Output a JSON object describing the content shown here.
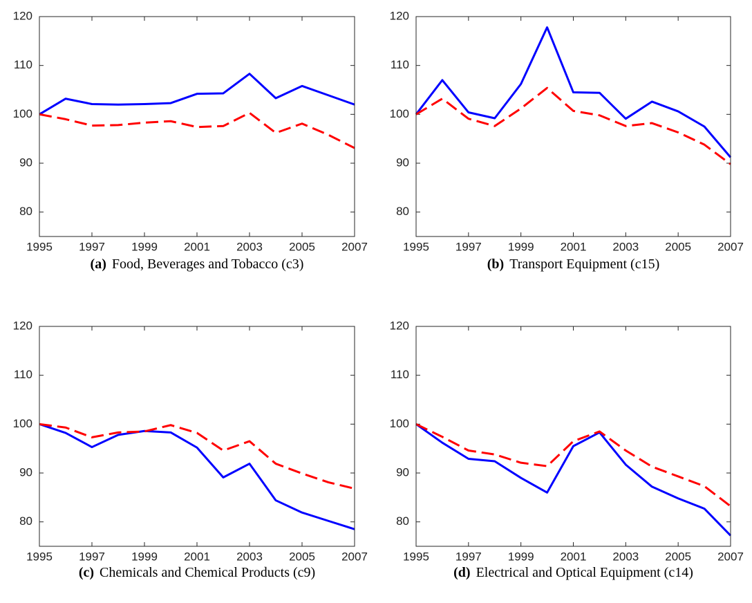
{
  "chart_data": [
    {
      "type": "line",
      "label": "(a)",
      "caption": "Food, Beverages and Tobacco (c3)",
      "x": [
        1995,
        1996,
        1997,
        1998,
        1999,
        2000,
        2001,
        2002,
        2003,
        2004,
        2005,
        2006,
        2007
      ],
      "xlim": [
        1995,
        2007
      ],
      "xticks": [
        1995,
        1997,
        1999,
        2001,
        2003,
        2005,
        2007
      ],
      "ylim": [
        75,
        120
      ],
      "yticks": [
        80,
        90,
        100,
        110,
        120
      ],
      "grid": false,
      "series": [
        {
          "color": "#0000ff",
          "style": "solid",
          "values": [
            100,
            103.2,
            102.1,
            102.0,
            102.1,
            102.3,
            104.2,
            104.3,
            108.3,
            103.3,
            105.8,
            103.9,
            102.0
          ]
        },
        {
          "color": "#ff0000",
          "style": "dashed",
          "values": [
            100,
            99.0,
            97.7,
            97.8,
            98.3,
            98.6,
            97.4,
            97.6,
            100.3,
            96.2,
            98.1,
            95.8,
            93.1
          ]
        }
      ]
    },
    {
      "type": "line",
      "label": "(b)",
      "caption": "Transport Equipment (c15)",
      "x": [
        1995,
        1996,
        1997,
        1998,
        1999,
        2000,
        2001,
        2002,
        2003,
        2004,
        2005,
        2006,
        2007
      ],
      "xlim": [
        1995,
        2007
      ],
      "xticks": [
        1995,
        1997,
        1999,
        2001,
        2003,
        2005,
        2007
      ],
      "ylim": [
        75,
        120
      ],
      "yticks": [
        80,
        90,
        100,
        110,
        120
      ],
      "grid": false,
      "series": [
        {
          "color": "#0000ff",
          "style": "solid",
          "values": [
            100,
            107.0,
            100.4,
            99.2,
            106.2,
            117.8,
            104.5,
            104.4,
            99.1,
            102.6,
            100.6,
            97.5,
            91.2
          ]
        },
        {
          "color": "#ff0000",
          "style": "dashed",
          "values": [
            100,
            103.2,
            99.1,
            97.6,
            101.2,
            105.4,
            100.7,
            99.8,
            97.6,
            98.2,
            96.3,
            93.8,
            89.8
          ]
        }
      ]
    },
    {
      "type": "line",
      "label": "(c)",
      "caption": "Chemicals and Chemical Products (c9)",
      "x": [
        1995,
        1996,
        1997,
        1998,
        1999,
        2000,
        2001,
        2002,
        2003,
        2004,
        2005,
        2006,
        2007
      ],
      "xlim": [
        1995,
        2007
      ],
      "xticks": [
        1995,
        1997,
        1999,
        2001,
        2003,
        2005,
        2007
      ],
      "ylim": [
        75,
        120
      ],
      "yticks": [
        80,
        90,
        100,
        110,
        120
      ],
      "grid": false,
      "series": [
        {
          "color": "#0000ff",
          "style": "solid",
          "values": [
            100,
            98.2,
            95.3,
            97.8,
            98.6,
            98.3,
            95.2,
            89.1,
            91.9,
            84.4,
            81.9,
            80.2,
            78.5
          ]
        },
        {
          "color": "#ff0000",
          "style": "dashed",
          "values": [
            100,
            99.3,
            97.3,
            98.3,
            98.5,
            99.8,
            98.2,
            94.6,
            96.5,
            91.9,
            89.9,
            88.1,
            86.8
          ]
        }
      ]
    },
    {
      "type": "line",
      "label": "(d)",
      "caption": "Electrical and Optical Equipment (c14)",
      "x": [
        1995,
        1996,
        1997,
        1998,
        1999,
        2000,
        2001,
        2002,
        2003,
        2004,
        2005,
        2006,
        2007
      ],
      "xlim": [
        1995,
        2007
      ],
      "xticks": [
        1995,
        1997,
        1999,
        2001,
        2003,
        2005,
        2007
      ],
      "ylim": [
        75,
        120
      ],
      "yticks": [
        80,
        90,
        100,
        110,
        120
      ],
      "grid": false,
      "series": [
        {
          "color": "#0000ff",
          "style": "solid",
          "values": [
            100,
            96.2,
            92.9,
            92.4,
            89.0,
            86.0,
            95.5,
            98.3,
            91.7,
            87.2,
            84.8,
            82.7,
            77.2
          ]
        },
        {
          "color": "#ff0000",
          "style": "dashed",
          "values": [
            100,
            97.4,
            94.6,
            93.8,
            92.1,
            91.4,
            96.5,
            98.5,
            94.6,
            91.3,
            89.3,
            87.3,
            83.2
          ]
        }
      ]
    }
  ]
}
